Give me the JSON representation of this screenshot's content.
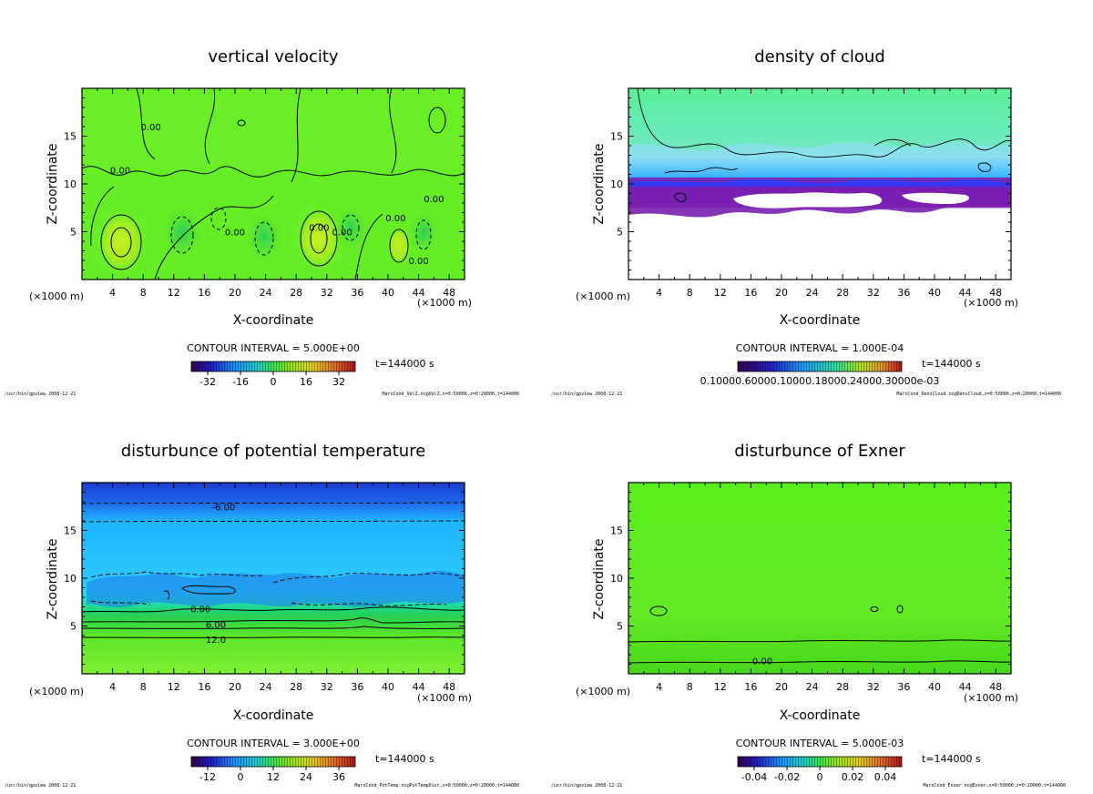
{
  "figure": {
    "colors": {
      "frame": "#000000",
      "background": "#ffffff"
    }
  },
  "chart_data": [
    {
      "type": "heatmap",
      "title": "vertical velocity",
      "xlabel": "X-coordinate",
      "ylabel": "Z-coordinate",
      "x_unit_left": "(×1000 m)",
      "x_unit_right": "(×1000 m)",
      "xlim": [
        0,
        50
      ],
      "ylim": [
        0,
        20
      ],
      "xticks": [
        4,
        8,
        12,
        16,
        20,
        24,
        28,
        32,
        36,
        40,
        44,
        48
      ],
      "yticks": [
        5,
        10,
        15
      ],
      "field_colors": [
        "#55e61e",
        "#6cf028",
        "#86f535",
        "#c2ec1a",
        "#2fd24a"
      ],
      "contour_labels": [
        {
          "x": 9,
          "z": 16.0,
          "text": "0.00"
        },
        {
          "x": 5,
          "z": 11.5,
          "text": "0.00"
        },
        {
          "x": 20,
          "z": 5.0,
          "text": "0.00"
        },
        {
          "x": 31,
          "z": 5.5,
          "text": "0.00"
        },
        {
          "x": 34,
          "z": 5.0,
          "text": "0.00"
        },
        {
          "x": 41,
          "z": 6.5,
          "text": "0.00"
        },
        {
          "x": 46,
          "z": 8.5,
          "text": "0.00"
        },
        {
          "x": 44,
          "z": 2.0,
          "text": "0.00"
        }
      ],
      "contour_interval": "CONTOUR INTERVAL = 5.000E+00",
      "time_label": "t=144000 s",
      "colorbar": {
        "range": [
          -40,
          40
        ],
        "ticks": [
          "-32",
          "-16",
          "0",
          "16",
          "32"
        ]
      },
      "footer_left": "/usr/bin/gpview 2008-12-21",
      "footer_right": "MarsCond_VelZ.nc@VelZ,x=0:50000,z=0:20000,t=144000"
    },
    {
      "type": "heatmap",
      "title": "density of cloud",
      "xlabel": "X-coordinate",
      "ylabel": "Z-coordinate",
      "x_unit_left": "(×1000 m)",
      "x_unit_right": "(×1000 m)",
      "xlim": [
        0,
        50
      ],
      "ylim": [
        0,
        20
      ],
      "xticks": [
        4,
        8,
        12,
        16,
        20,
        24,
        28,
        32,
        36,
        40,
        44,
        48
      ],
      "yticks": [
        5,
        10,
        15
      ],
      "field_colors": [
        "#50f07c",
        "#5ee8c0",
        "#3cc8ff",
        "#1f5cff",
        "#7a1fb0"
      ],
      "contour_interval": "CONTOUR INTERVAL = 1.000E-04",
      "time_label": "t=144000 s",
      "colorbar": {
        "range": [
          0,
          1
        ],
        "ticks": [
          "0.1000E-03"
        ],
        "overlap_label": "0.10000.60000.10000.18000.24000.30000e-03"
      },
      "footer_left": "/usr/bin/gpview 2008-12-21",
      "footer_right": "MarsCond_DensCloud.nc@DensCloud,x=0:50000,z=0:20000,t=144000"
    },
    {
      "type": "heatmap",
      "title": "disturbunce of potential temperature",
      "xlabel": "X-coordinate",
      "ylabel": "Z-coordinate",
      "x_unit_left": "(×1000 m)",
      "x_unit_right": "(×1000 m)",
      "xlim": [
        0,
        50
      ],
      "ylim": [
        0,
        20
      ],
      "xticks": [
        4,
        8,
        12,
        16,
        20,
        24,
        28,
        32,
        36,
        40,
        44,
        48
      ],
      "yticks": [
        5,
        10,
        15
      ],
      "field_colors": [
        "#1e50d8",
        "#29a6ff",
        "#28c8ff",
        "#29d98c",
        "#6ee632"
      ],
      "contour_labels": [
        {
          "x": 18.5,
          "z": 17.5,
          "text": "-6.00"
        },
        {
          "x": 15.5,
          "z": 6.8,
          "text": "0.00"
        },
        {
          "x": 17.5,
          "z": 5.2,
          "text": "6.00"
        },
        {
          "x": 17.5,
          "z": 3.6,
          "text": "12.0"
        }
      ],
      "contour_interval": "CONTOUR INTERVAL = 3.000E+00",
      "time_label": "t=144000 s",
      "colorbar": {
        "range": [
          -18,
          42
        ],
        "ticks": [
          "-12",
          "0",
          "12",
          "24",
          "36"
        ]
      },
      "footer_left": "/usr/bin/gpview 2008-12-21",
      "footer_right": "MarsCond_PotTemp.nc@PotTempDist,x=0:50000,z=0:20000,t=144000"
    },
    {
      "type": "heatmap",
      "title": "disturbunce of Exner",
      "xlabel": "X-coordinate",
      "ylabel": "Z-coordinate",
      "x_unit_left": "(×1000 m)",
      "x_unit_right": "(×1000 m)",
      "xlim": [
        0,
        50
      ],
      "ylim": [
        0,
        20
      ],
      "xticks": [
        4,
        8,
        12,
        16,
        20,
        24,
        28,
        32,
        36,
        40,
        44,
        48
      ],
      "yticks": [
        5,
        10,
        15
      ],
      "field_colors": [
        "#56ec1c",
        "#5fe81e",
        "#6ae324"
      ],
      "contour_labels": [
        {
          "x": 17.5,
          "z": 1.4,
          "text": "0.00"
        }
      ],
      "contour_interval": "CONTOUR INTERVAL = 5.000E-03",
      "time_label": "t=144000 s",
      "colorbar": {
        "range": [
          -0.05,
          0.05
        ],
        "ticks": [
          "-0.04",
          "-0.02",
          "0",
          "0.02",
          "0.04"
        ]
      },
      "footer_left": "/usr/bin/gpview 2008-12-21",
      "footer_right": "MarsCond_Exner.nc@Exner,x=0:50000,z=0:20000,t=144000"
    }
  ]
}
